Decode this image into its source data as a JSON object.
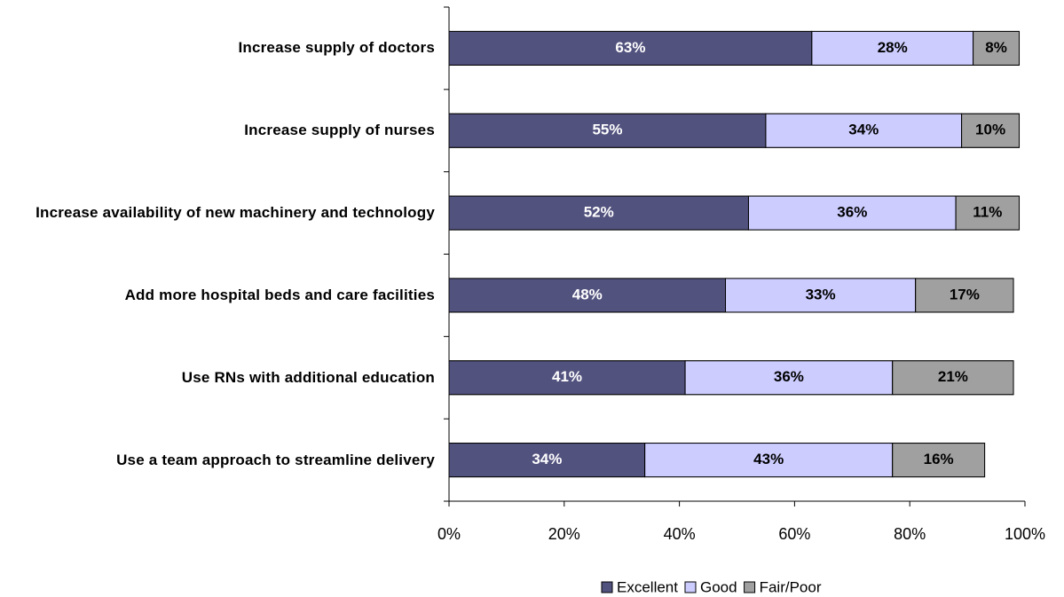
{
  "chart_data": {
    "type": "stacked_barh",
    "categories": [
      "Increase supply of doctors",
      "Increase supply of nurses",
      "Increase availability of new machinery and technology",
      "Add more hospital beds and care facilities",
      "Use RNs with additional education",
      "Use a team approach to streamline delivery"
    ],
    "series": [
      {
        "name": "Excellent",
        "color": "#52527f",
        "label_color": "#ffffff",
        "values": [
          63,
          55,
          52,
          48,
          41,
          34
        ],
        "value_labels": [
          "63%",
          "55%",
          "52%",
          "48%",
          "41%",
          "34%"
        ]
      },
      {
        "name": "Good",
        "color": "#ccccff",
        "label_color": "#000000",
        "values": [
          28,
          34,
          36,
          33,
          36,
          43
        ],
        "value_labels": [
          "28%",
          "34%",
          "36%",
          "33%",
          "36%",
          "43%"
        ]
      },
      {
        "name": "Fair/Poor",
        "color": "#a0a0a0",
        "label_color": "#000000",
        "values": [
          8,
          10,
          11,
          17,
          21,
          16
        ],
        "value_labels": [
          "8%",
          "10%",
          "11%",
          "17%",
          "21%",
          "16%"
        ]
      }
    ],
    "xlim": [
      0,
      100
    ],
    "xticks": [
      {
        "value": 0,
        "label": "0%"
      },
      {
        "value": 20,
        "label": "20%"
      },
      {
        "value": 40,
        "label": "40%"
      },
      {
        "value": 60,
        "label": "60%"
      },
      {
        "value": 80,
        "label": "80%"
      },
      {
        "value": 100,
        "label": "100%"
      }
    ],
    "legend": "bottom"
  }
}
